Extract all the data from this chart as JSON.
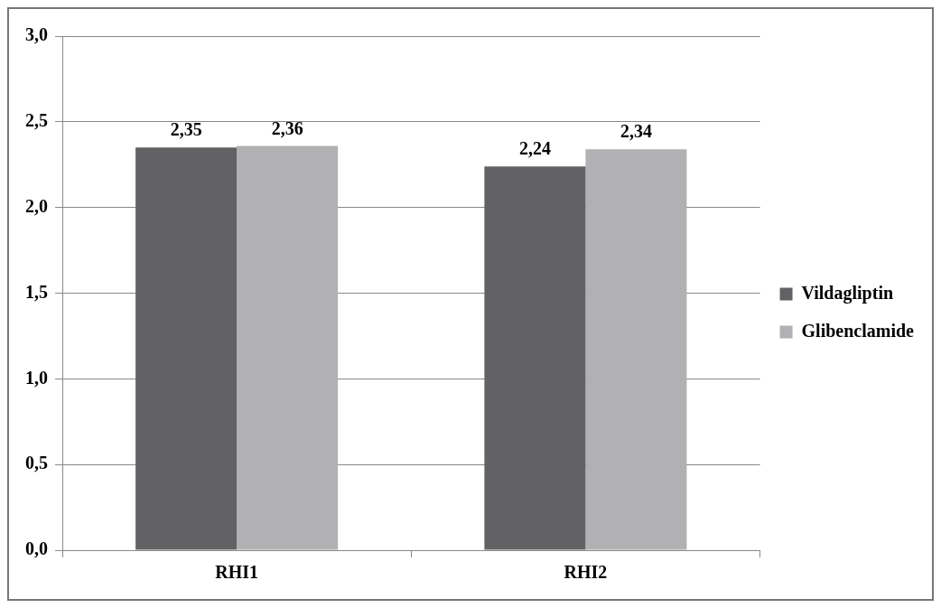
{
  "chart_data": {
    "type": "bar",
    "categories": [
      "RHI1",
      "RHI2"
    ],
    "series": [
      {
        "name": "Vildagliptin",
        "color": "#626264",
        "values": [
          2.35,
          2.24
        ],
        "value_labels": [
          "2,35",
          "2,24"
        ]
      },
      {
        "name": "Glibenclamide",
        "color": "#b1b1b3",
        "values": [
          2.36,
          2.34
        ],
        "value_labels": [
          "2,36",
          "2,34"
        ]
      }
    ],
    "ylim": [
      0,
      3
    ],
    "yticks": [
      {
        "value": 0,
        "label": "0,0"
      },
      {
        "value": 0.5,
        "label": "0,5"
      },
      {
        "value": 1,
        "label": "1,0"
      },
      {
        "value": 1.5,
        "label": "1,5"
      },
      {
        "value": 2,
        "label": "2,0"
      },
      {
        "value": 2.5,
        "label": "2,5"
      },
      {
        "value": 3,
        "label": "3,0"
      }
    ],
    "grid": "y",
    "legend": "right"
  }
}
